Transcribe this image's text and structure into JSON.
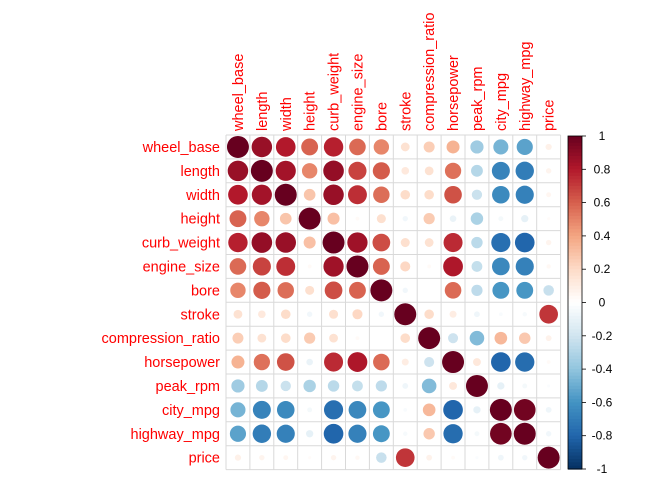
{
  "chart_data": {
    "type": "correlogram",
    "variables": [
      "wheel_base",
      "length",
      "width",
      "height",
      "curb_weight",
      "engine_size",
      "bore",
      "stroke",
      "compression_ratio",
      "horsepower",
      "peak_rpm",
      "city_mpg",
      "highway_mpg",
      "price"
    ],
    "matrix": [
      [
        1.0,
        0.87,
        0.8,
        0.59,
        0.78,
        0.57,
        0.49,
        0.16,
        0.25,
        0.35,
        -0.36,
        -0.47,
        -0.54,
        0.08
      ],
      [
        0.87,
        1.0,
        0.84,
        0.49,
        0.88,
        0.68,
        0.61,
        0.12,
        0.16,
        0.55,
        -0.29,
        -0.67,
        -0.7,
        0.06
      ],
      [
        0.8,
        0.84,
        1.0,
        0.28,
        0.87,
        0.74,
        0.56,
        0.19,
        0.19,
        0.64,
        -0.22,
        -0.64,
        -0.68,
        0.05
      ],
      [
        0.59,
        0.49,
        0.28,
        1.0,
        0.3,
        0.03,
        0.17,
        -0.06,
        0.26,
        -0.09,
        -0.32,
        -0.05,
        -0.11,
        0.02
      ],
      [
        0.78,
        0.88,
        0.87,
        0.3,
        1.0,
        0.85,
        0.65,
        0.17,
        0.16,
        0.75,
        -0.27,
        -0.76,
        -0.8,
        0.06
      ],
      [
        0.57,
        0.68,
        0.74,
        0.03,
        0.85,
        1.0,
        0.59,
        0.21,
        0.03,
        0.81,
        -0.24,
        -0.65,
        -0.68,
        0.04
      ],
      [
        0.49,
        0.61,
        0.56,
        0.17,
        0.65,
        0.59,
        1.0,
        -0.06,
        0.0,
        0.57,
        -0.26,
        -0.59,
        -0.59,
        -0.23
      ],
      [
        0.16,
        0.12,
        0.19,
        -0.06,
        0.17,
        0.21,
        -0.06,
        1.0,
        0.19,
        0.1,
        -0.07,
        -0.03,
        -0.04,
        0.72
      ],
      [
        0.25,
        0.16,
        0.19,
        0.26,
        0.16,
        0.03,
        0.0,
        0.19,
        1.0,
        -0.21,
        -0.44,
        0.33,
        0.27,
        0.07
      ],
      [
        0.35,
        0.55,
        0.64,
        -0.09,
        0.75,
        0.81,
        0.57,
        0.1,
        -0.21,
        1.0,
        0.13,
        -0.8,
        -0.77,
        0.03
      ],
      [
        -0.36,
        -0.29,
        -0.22,
        -0.32,
        -0.27,
        -0.24,
        -0.26,
        -0.07,
        -0.44,
        0.13,
        1.0,
        -0.11,
        -0.05,
        -0.02
      ],
      [
        -0.47,
        -0.67,
        -0.64,
        -0.05,
        -0.76,
        -0.65,
        -0.59,
        -0.03,
        0.33,
        -0.8,
        -0.11,
        1.0,
        0.97,
        -0.07
      ],
      [
        -0.54,
        -0.7,
        -0.68,
        -0.11,
        -0.8,
        -0.68,
        -0.59,
        -0.04,
        0.27,
        -0.77,
        -0.05,
        0.97,
        1.0,
        -0.06
      ],
      [
        0.08,
        0.06,
        0.05,
        0.02,
        0.06,
        0.04,
        -0.23,
        0.72,
        0.07,
        0.03,
        -0.02,
        -0.07,
        -0.06,
        1.0
      ]
    ],
    "colorbar": {
      "range": [
        -1,
        1
      ],
      "ticks": [
        "1",
        "0.8",
        "0.6",
        "0.4",
        "0.2",
        "0",
        "-0.2",
        "-0.4",
        "-0.6",
        "-0.8",
        "-1"
      ],
      "colors": [
        "#67001f",
        "#b2182b",
        "#d6604d",
        "#f4a582",
        "#fddbc7",
        "#ffffff",
        "#d1e5f0",
        "#92c5de",
        "#4393c3",
        "#2166ac",
        "#053061"
      ]
    },
    "label_color": "#ff0000",
    "grid": true
  }
}
